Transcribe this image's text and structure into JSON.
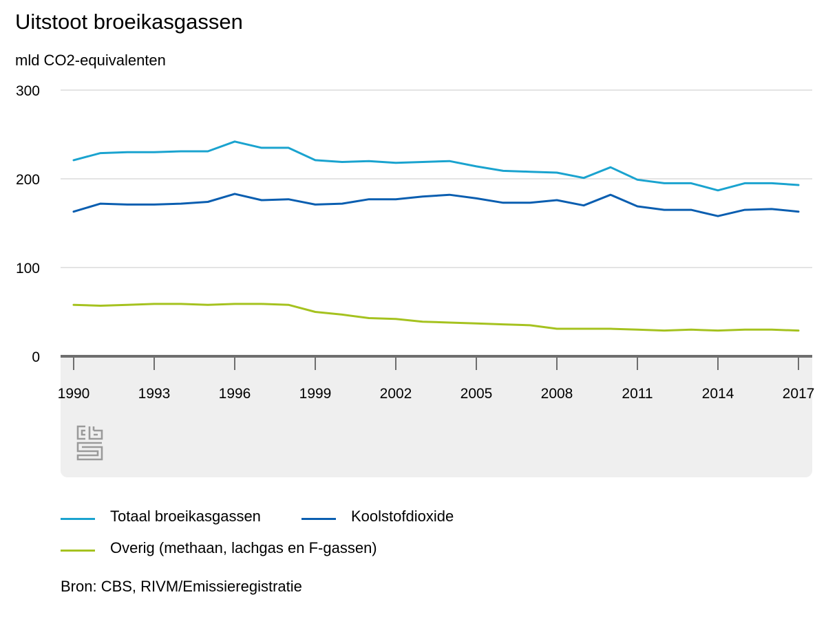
{
  "title": "Uitstoot broeikasgassen",
  "unit_label": "mld CO2-equivalenten",
  "source": "Bron: CBS, RIVM/Emissieregistratie",
  "logo": {
    "name": "cbs-logo",
    "text": "cbs"
  },
  "chart_data": {
    "type": "line",
    "title": "Uitstoot broeikasgassen",
    "ylabel": "mld CO2-equivalenten",
    "xlabel": "",
    "ylim": [
      0,
      300
    ],
    "yticks": [
      0,
      100,
      200,
      300
    ],
    "xlim": [
      1990,
      2017
    ],
    "xtick_labels": [
      "1990",
      "1993",
      "1996",
      "1999",
      "2002",
      "2005",
      "2008",
      "2011",
      "2014",
      "2017"
    ],
    "grid": true,
    "legend_position": "bottom",
    "x": [
      1990,
      1991,
      1992,
      1993,
      1994,
      1995,
      1996,
      1997,
      1998,
      1999,
      2000,
      2001,
      2002,
      2003,
      2004,
      2005,
      2006,
      2007,
      2008,
      2009,
      2010,
      2011,
      2012,
      2013,
      2014,
      2015,
      2016,
      2017
    ],
    "series": [
      {
        "name": "Totaal broeikasgassen",
        "color": "#1aa3cf",
        "values": [
          221,
          229,
          230,
          230,
          231,
          231,
          242,
          235,
          235,
          221,
          219,
          220,
          218,
          219,
          220,
          214,
          209,
          208,
          207,
          201,
          213,
          199,
          195,
          195,
          187,
          195,
          195,
          193
        ]
      },
      {
        "name": "Koolstofdioxide",
        "color": "#0a5eb0",
        "values": [
          163,
          172,
          171,
          171,
          172,
          174,
          183,
          176,
          177,
          171,
          172,
          177,
          177,
          180,
          182,
          178,
          173,
          173,
          176,
          170,
          182,
          169,
          165,
          165,
          158,
          165,
          166,
          163
        ]
      },
      {
        "name": "Overig (methaan, lachgas en F-gassen)",
        "color": "#a5c21f",
        "values": [
          58,
          57,
          58,
          59,
          59,
          58,
          59,
          59,
          58,
          50,
          47,
          43,
          42,
          39,
          38,
          37,
          36,
          35,
          31,
          31,
          31,
          30,
          29,
          30,
          29,
          30,
          30,
          29
        ]
      }
    ]
  },
  "legend": [
    {
      "label": "Totaal broeikasgassen",
      "color": "#1aa3cf"
    },
    {
      "label": "Koolstofdioxide",
      "color": "#0a5eb0"
    },
    {
      "label": "Overig (methaan, lachgas en F-gassen)",
      "color": "#a5c21f"
    }
  ],
  "colors": {
    "grid": "#c8c8c8",
    "axis": "#6e6e6e",
    "panel": "#efefef",
    "logo": "#9a9a9a"
  }
}
